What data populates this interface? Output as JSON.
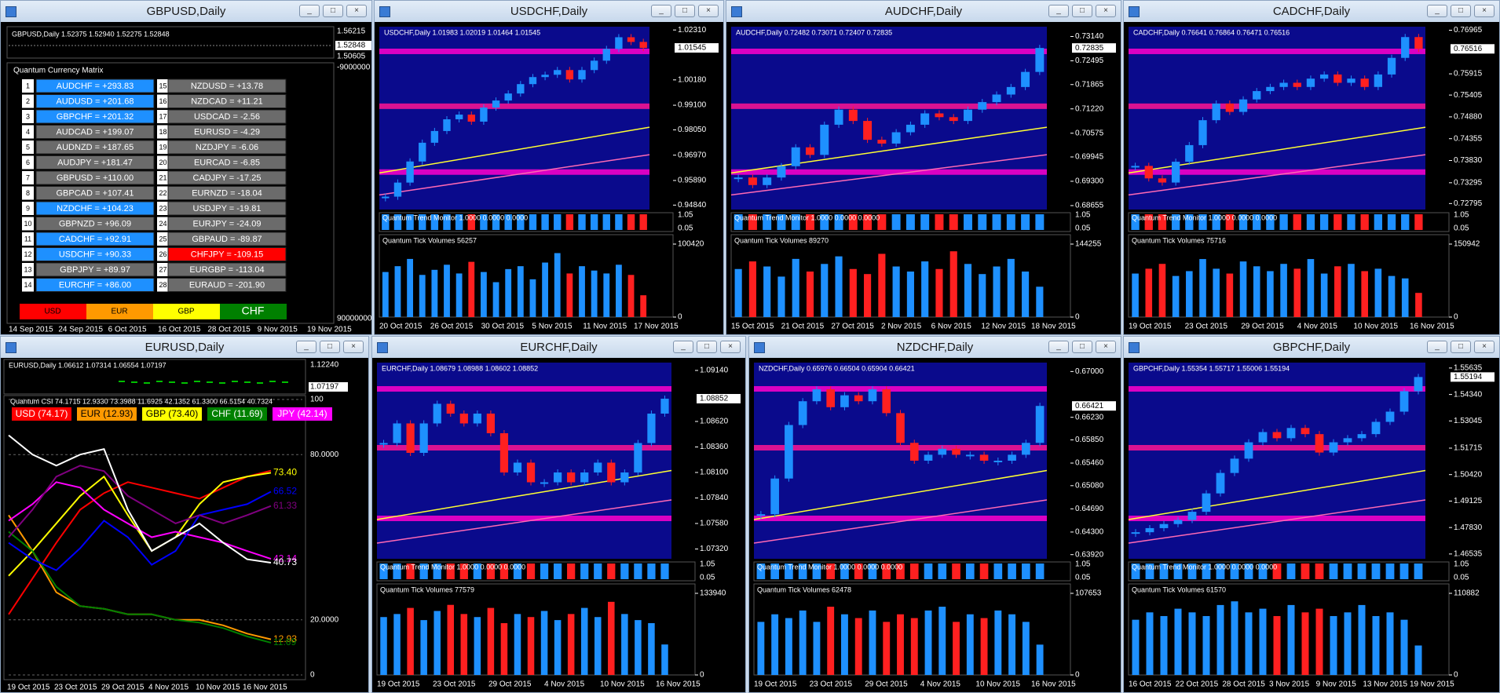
{
  "windows": [
    {
      "kind": "matrix",
      "title": "GBPUSD,Daily",
      "info": "GBPUSD,Daily 1.52375 1.52940 1.52275 1.52848",
      "price_ticks": [
        "1.56215",
        "1.52848",
        "1.50605"
      ],
      "matrix_axis": [
        "-9000000",
        "90000000"
      ],
      "matrix_title": "Quantum Currency Matrix",
      "left": [
        {
          "n": 1,
          "text": "AUDCHF = +293.83",
          "color": "blue"
        },
        {
          "n": 2,
          "text": "AUDUSD = +201.68",
          "color": "blue"
        },
        {
          "n": 3,
          "text": "GBPCHF = +201.32",
          "color": "blue"
        },
        {
          "n": 4,
          "text": "AUDCAD = +199.07",
          "color": "gray"
        },
        {
          "n": 5,
          "text": "AUDNZD = +187.65",
          "color": "gray"
        },
        {
          "n": 6,
          "text": "AUDJPY = +181.47",
          "color": "gray"
        },
        {
          "n": 7,
          "text": "GBPUSD = +110.00",
          "color": "gray"
        },
        {
          "n": 8,
          "text": "GBPCAD = +107.41",
          "color": "gray"
        },
        {
          "n": 9,
          "text": "NZDCHF = +104.23",
          "color": "blue"
        },
        {
          "n": 10,
          "text": "GBPNZD = +96.09",
          "color": "gray"
        },
        {
          "n": 11,
          "text": "CADCHF = +92.91",
          "color": "blue"
        },
        {
          "n": 12,
          "text": "USDCHF = +90.33",
          "color": "blue"
        },
        {
          "n": 13,
          "text": "GBPJPY = +89.97",
          "color": "gray"
        },
        {
          "n": 14,
          "text": "EURCHF = +86.00",
          "color": "blue"
        }
      ],
      "right": [
        {
          "n": 15,
          "text": "NZDUSD = +13.78",
          "color": "gray"
        },
        {
          "n": 16,
          "text": "NZDCAD = +11.21",
          "color": "gray"
        },
        {
          "n": 17,
          "text": "USDCAD = -2.56",
          "color": "gray"
        },
        {
          "n": 18,
          "text": "EURUSD = -4.29",
          "color": "gray"
        },
        {
          "n": 19,
          "text": "NZDJPY = -6.06",
          "color": "gray"
        },
        {
          "n": 20,
          "text": "EURCAD = -6.85",
          "color": "gray"
        },
        {
          "n": 21,
          "text": "CADJPY = -17.25",
          "color": "gray"
        },
        {
          "n": 22,
          "text": "EURNZD = -18.04",
          "color": "gray"
        },
        {
          "n": 23,
          "text": "USDJPY = -19.81",
          "color": "gray"
        },
        {
          "n": 24,
          "text": "EURJPY = -24.09",
          "color": "gray"
        },
        {
          "n": 25,
          "text": "GBPAUD = -89.87",
          "color": "gray"
        },
        {
          "n": 26,
          "text": "CHFJPY = -109.15",
          "color": "red"
        },
        {
          "n": 27,
          "text": "EURGBP = -113.04",
          "color": "gray"
        },
        {
          "n": 28,
          "text": "EURAUD = -201.90",
          "color": "gray"
        }
      ],
      "buttons": [
        {
          "text": "USD",
          "color": "#ff0000"
        },
        {
          "text": "EUR",
          "color": "#ff9900"
        },
        {
          "text": "GBP",
          "color": "#ffff00"
        },
        {
          "text": "CHF",
          "color": "#008000"
        }
      ],
      "dates": [
        "14 Sep 2015",
        "24 Sep 2015",
        "6 Oct 2015",
        "16 Oct 2015",
        "28 Oct 2015",
        "9 Nov 2015",
        "19 Nov 2015"
      ]
    },
    {
      "kind": "candles",
      "title": "USDCHF,Daily",
      "info": "USDCHF,Daily 1.01983 1.02019 1.01464 1.01545",
      "price_range": [
        0.9465,
        1.0245
      ],
      "price_ticks": [
        {
          "value": 1.0231,
          "label": "1.02310"
        },
        {
          "value": 1.0018,
          "label": "1.00180"
        },
        {
          "value": 0.991,
          "label": "0.99100"
        },
        {
          "value": 0.9805,
          "label": "0.98050"
        },
        {
          "value": 0.9697,
          "label": "0.96970"
        },
        {
          "value": 0.9589,
          "label": "0.95890"
        },
        {
          "value": 0.9484,
          "label": "0.94840"
        }
      ],
      "current": {
        "value": 1.01545,
        "label": "1.01545"
      },
      "closes": [
        0.952,
        0.958,
        0.967,
        0.975,
        0.98,
        0.985,
        0.987,
        0.984,
        0.99,
        0.993,
        0.996,
        1.0,
        1.003,
        1.004,
        1.006,
        1.002,
        1.006,
        1.01,
        1.015,
        1.02,
        1.018,
        1.01545
      ],
      "trend_label": "Quantum Trend Monitor 1.0000 0.0000 0.0000",
      "trend_ticks": [
        "1.05",
        "0.05"
      ],
      "volume_label": "Quantum Tick Volumes 56257",
      "volume_ticks": [
        100420,
        0
      ],
      "volumes": [
        62000,
        70000,
        80000,
        58000,
        65000,
        72000,
        60000,
        76000,
        62000,
        48000,
        66000,
        70000,
        52000,
        75000,
        88000,
        60000,
        70000,
        64000,
        60000,
        72000,
        58000,
        30000
      ],
      "dates": [
        "20 Oct 2015",
        "26 Oct 2015",
        "30 Oct 2015",
        "5 Nov 2015",
        "11 Nov 2015",
        "17 Nov 2015"
      ]
    },
    {
      "kind": "candles",
      "title": "AUDCHF,Daily",
      "info": "AUDCHF,Daily 0.72482 0.73071 0.72407 0.72835",
      "price_range": [
        0.6855,
        0.734
      ],
      "price_ticks": [
        {
          "value": 0.7314,
          "label": "0.73140"
        },
        {
          "value": 0.72495,
          "label": "0.72495"
        },
        {
          "value": 0.71865,
          "label": "0.71865"
        },
        {
          "value": 0.7122,
          "label": "0.71220"
        },
        {
          "value": 0.70575,
          "label": "0.70575"
        },
        {
          "value": 0.69945,
          "label": "0.69945"
        },
        {
          "value": 0.693,
          "label": "0.69300"
        },
        {
          "value": 0.68655,
          "label": "0.68655"
        }
      ],
      "current": {
        "value": 0.72835,
        "label": "0.72835"
      },
      "closes": [
        0.694,
        0.692,
        0.694,
        0.697,
        0.702,
        0.7,
        0.708,
        0.712,
        0.709,
        0.704,
        0.703,
        0.706,
        0.708,
        0.711,
        0.71,
        0.709,
        0.712,
        0.714,
        0.716,
        0.718,
        0.722,
        0.72835
      ],
      "trend_label": "Quantum Trend Monitor 1.0000 0.0000 0.0000",
      "trend_ticks": [
        "1.05",
        "0.05"
      ],
      "volume_label": "Quantum Tick Volumes 89270",
      "volume_ticks": [
        144255,
        0
      ],
      "volumes": [
        95000,
        110000,
        100000,
        80000,
        115000,
        90000,
        105000,
        120000,
        95000,
        85000,
        125000,
        100000,
        90000,
        110000,
        95000,
        130000,
        105000,
        85000,
        100000,
        115000,
        90000,
        60000
      ],
      "dates": [
        "15 Oct 2015",
        "21 Oct 2015",
        "27 Oct 2015",
        "2 Nov 2015",
        "6 Nov 2015",
        "12 Nov 2015",
        "18 Nov 2015"
      ]
    },
    {
      "kind": "candles",
      "title": "CADCHF,Daily",
      "info": "CADCHF,Daily 0.76641 0.76864 0.76471 0.76516",
      "price_range": [
        0.7265,
        0.7705
      ],
      "price_ticks": [
        {
          "value": 0.76965,
          "label": "0.76965"
        },
        {
          "value": 0.75915,
          "label": "0.75915"
        },
        {
          "value": 0.75405,
          "label": "0.75405"
        },
        {
          "value": 0.7488,
          "label": "0.74880"
        },
        {
          "value": 0.74355,
          "label": "0.74355"
        },
        {
          "value": 0.7383,
          "label": "0.73830"
        },
        {
          "value": 0.73295,
          "label": "0.73295"
        },
        {
          "value": 0.72795,
          "label": "0.72795"
        }
      ],
      "current": {
        "value": 0.76516,
        "label": "0.76516"
      },
      "closes": [
        0.737,
        0.734,
        0.733,
        0.738,
        0.742,
        0.748,
        0.752,
        0.75,
        0.753,
        0.755,
        0.756,
        0.757,
        0.756,
        0.758,
        0.759,
        0.757,
        0.758,
        0.756,
        0.759,
        0.763,
        0.768,
        0.76516
      ],
      "trend_label": "Quantum Trend Monitor 1.0000 0.0000 0.0000",
      "trend_ticks": [
        "1.05",
        "0.05"
      ],
      "volume_label": "Quantum Tick Volumes 75716",
      "volume_ticks": [
        150942,
        0
      ],
      "volumes": [
        90000,
        100000,
        110000,
        85000,
        95000,
        120000,
        100000,
        90000,
        115000,
        105000,
        95000,
        110000,
        100000,
        120000,
        90000,
        105000,
        110000,
        95000,
        100000,
        85000,
        80000,
        50000
      ],
      "dates": [
        "19 Oct 2015",
        "23 Oct 2015",
        "29 Oct 2015",
        "4 Nov 2015",
        "10 Nov 2015",
        "16 Nov 2015"
      ]
    },
    {
      "kind": "csi",
      "title": "EURUSD,Daily",
      "info": "EURUSD,Daily 1.06612 1.07314 1.06554 1.07197",
      "price_ticks": [
        "1.12240",
        "1.07197"
      ],
      "csi_label": "Quantum CSI 74.1715 12.9330 73.3988 11.6925 42.1352 61.3300 66.5154 40.7324",
      "yticks": [
        {
          "value": 100,
          "label": "100"
        },
        {
          "value": 80,
          "label": "80.0000"
        },
        {
          "value": 20,
          "label": "20.0000"
        },
        0
      ],
      "series": [
        {
          "name": "USD (74.17)",
          "color": "#ff0000",
          "values": [
            22,
            35,
            48,
            60,
            66,
            70,
            68,
            66,
            64,
            68,
            72,
            74.17
          ]
        },
        {
          "name": "EUR (12.93)",
          "color": "#ff9900",
          "values": [
            58,
            45,
            30,
            25,
            24,
            22,
            22,
            20,
            20,
            18,
            15,
            12.93
          ],
          "end_label": "12.93"
        },
        {
          "name": "GBP (73.40)",
          "color": "#ffff00",
          "values": [
            36,
            45,
            55,
            65,
            72,
            58,
            45,
            50,
            62,
            70,
            72,
            73.4
          ],
          "end_label": "73.40"
        },
        {
          "name": "CHF (11.69)",
          "color": "#008000",
          "values": [
            52,
            45,
            32,
            25,
            24,
            22,
            22,
            20,
            19,
            17,
            14,
            11.69
          ],
          "end_label": "11.69"
        },
        {
          "name": "JPY (42.14)",
          "color": "#ff00ff",
          "values": [
            56,
            62,
            70,
            68,
            60,
            55,
            50,
            52,
            50,
            48,
            45,
            42.14
          ],
          "end_label": "42.14"
        },
        {
          "color": "#0000ff",
          "values": [
            48,
            42,
            38,
            46,
            56,
            50,
            40,
            45,
            58,
            60,
            62,
            66.52
          ],
          "end_label": "66.52"
        },
        {
          "color": "#800080",
          "values": [
            50,
            60,
            72,
            76,
            74,
            65,
            60,
            55,
            58,
            55,
            58,
            61.33
          ],
          "end_label": "61.33"
        },
        {
          "color": "#ffffff",
          "values": [
            87,
            80,
            76,
            80,
            82,
            60,
            45,
            50,
            55,
            48,
            42,
            40.73
          ],
          "end_label": "40.73"
        }
      ],
      "dates": [
        "19 Oct 2015",
        "23 Oct 2015",
        "29 Oct 2015",
        "4 Nov 2015",
        "10 Nov 2015",
        "16 Nov 2015"
      ]
    },
    {
      "kind": "candles",
      "title": "EURCHF,Daily",
      "info": "EURCHF,Daily 1.08679 1.08988 1.08602 1.08852",
      "price_range": [
        1.0722,
        1.0922
      ],
      "price_ticks": [
        {
          "value": 1.0914,
          "label": "1.09140"
        },
        {
          "value": 1.0862,
          "label": "1.08620"
        },
        {
          "value": 1.0836,
          "label": "1.08360"
        },
        {
          "value": 1.081,
          "label": "1.08100"
        },
        {
          "value": 1.0784,
          "label": "1.07840"
        },
        {
          "value": 1.0758,
          "label": "1.07580"
        },
        {
          "value": 1.0732,
          "label": "1.07320"
        }
      ],
      "current": {
        "value": 1.08852,
        "label": "1.08852"
      },
      "closes": [
        1.084,
        1.086,
        1.083,
        1.086,
        1.088,
        1.087,
        1.086,
        1.087,
        1.085,
        1.081,
        1.082,
        1.08,
        1.08,
        1.081,
        1.08,
        1.081,
        1.082,
        1.08,
        1.081,
        1.084,
        1.087,
        1.08852
      ],
      "trend_label": "Quantum Trend Monitor 1.0000 0.0000 0.0000",
      "trend_ticks": [
        "1.05",
        "0.05"
      ],
      "volume_label": "Quantum Tick Volumes 77579",
      "volume_ticks": [
        133940,
        0
      ],
      "volumes": [
        95000,
        100000,
        110000,
        90000,
        105000,
        115000,
        100000,
        95000,
        110000,
        85000,
        100000,
        95000,
        105000,
        90000,
        100000,
        110000,
        95000,
        120000,
        100000,
        90000,
        85000,
        50000
      ],
      "dates": [
        "19 Oct 2015",
        "23 Oct 2015",
        "29 Oct 2015",
        "4 Nov 2015",
        "10 Nov 2015",
        "16 Nov 2015"
      ]
    },
    {
      "kind": "candles",
      "title": "NZDCHF,Daily",
      "info": "NZDCHF,Daily 0.65976 0.66504 0.65904 0.66421",
      "price_range": [
        0.6385,
        0.6715
      ],
      "price_ticks": [
        {
          "value": 0.67,
          "label": "0.67000"
        },
        {
          "value": 0.6623,
          "label": "0.66230"
        },
        {
          "value": 0.6585,
          "label": "0.65850"
        },
        {
          "value": 0.6546,
          "label": "0.65460"
        },
        {
          "value": 0.6508,
          "label": "0.65080"
        },
        {
          "value": 0.6469,
          "label": "0.64690"
        },
        {
          "value": 0.643,
          "label": "0.64300"
        },
        {
          "value": 0.6392,
          "label": "0.63920"
        }
      ],
      "current": {
        "value": 0.66421,
        "label": "0.66421"
      },
      "closes": [
        0.646,
        0.652,
        0.661,
        0.665,
        0.667,
        0.664,
        0.666,
        0.665,
        0.667,
        0.663,
        0.658,
        0.655,
        0.656,
        0.657,
        0.656,
        0.656,
        0.655,
        0.655,
        0.656,
        0.658,
        0.66421
      ],
      "trend_label": "Quantum Trend Monitor 1.0000 0.0000 0.0000",
      "trend_ticks": [
        "1.05",
        "0.05"
      ],
      "volume_label": "Quantum Tick Volumes 62478",
      "volume_ticks": [
        107653,
        0
      ],
      "volumes": [
        70000,
        80000,
        75000,
        85000,
        70000,
        90000,
        80000,
        75000,
        85000,
        70000,
        80000,
        75000,
        85000,
        90000,
        70000,
        80000,
        75000,
        85000,
        80000,
        70000,
        40000
      ],
      "dates": [
        "19 Oct 2015",
        "23 Oct 2015",
        "29 Oct 2015",
        "4 Nov 2015",
        "10 Nov 2015",
        "16 Nov 2015"
      ]
    },
    {
      "kind": "candles",
      "title": "GBPCHF,Daily",
      "info": "GBPCHF,Daily 1.55354 1.55717 1.55006 1.55194",
      "price_range": [
        1.463,
        1.559
      ],
      "price_ticks": [
        {
          "value": 1.55635,
          "label": "1.55635"
        },
        {
          "value": 1.5434,
          "label": "1.54340"
        },
        {
          "value": 1.53045,
          "label": "1.53045"
        },
        {
          "value": 1.51715,
          "label": "1.51715"
        },
        {
          "value": 1.5042,
          "label": "1.50420"
        },
        {
          "value": 1.49125,
          "label": "1.49125"
        },
        {
          "value": 1.4783,
          "label": "1.47830"
        },
        {
          "value": 1.46535,
          "label": "1.46535"
        }
      ],
      "current": {
        "value": 1.55194,
        "label": "1.55194"
      },
      "closes": [
        1.476,
        1.478,
        1.48,
        1.482,
        1.486,
        1.495,
        1.505,
        1.512,
        1.52,
        1.525,
        1.522,
        1.527,
        1.524,
        1.515,
        1.52,
        1.522,
        1.524,
        1.53,
        1.535,
        1.545,
        1.55194
      ],
      "trend_label": "Quantum Trend Monitor 1.0000 0.0000 0.0000",
      "trend_ticks": [
        "1.05",
        "0.05"
      ],
      "volume_label": "Quantum Tick Volumes 61570",
      "volume_ticks": [
        110882,
        0
      ],
      "volumes": [
        75000,
        85000,
        80000,
        90000,
        85000,
        80000,
        95000,
        100000,
        85000,
        90000,
        80000,
        95000,
        85000,
        90000,
        80000,
        85000,
        95000,
        80000,
        85000,
        75000,
        40000
      ],
      "dates": [
        "16 Oct 2015",
        "22 Oct 2015",
        "28 Oct 2015",
        "3 Nov 2015",
        "9 Nov 2015",
        "13 Nov 2015",
        "19 Nov 2015"
      ]
    }
  ]
}
